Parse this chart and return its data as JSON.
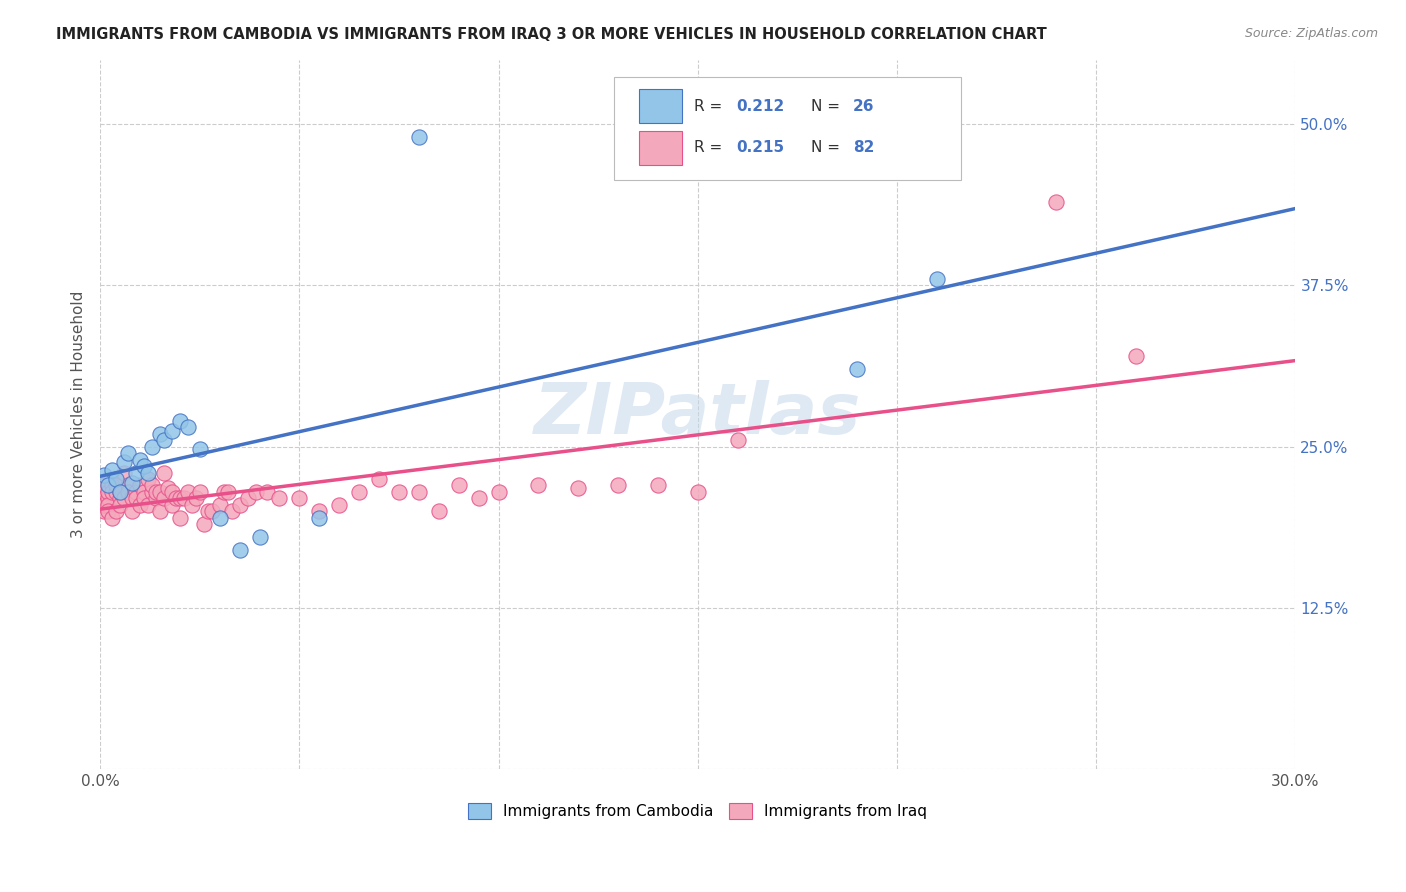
{
  "title": "IMMIGRANTS FROM CAMBODIA VS IMMIGRANTS FROM IRAQ 3 OR MORE VEHICLES IN HOUSEHOLD CORRELATION CHART",
  "source": "Source: ZipAtlas.com",
  "ylabel": "3 or more Vehicles in Household",
  "xmin": 0.0,
  "xmax": 0.3,
  "ymin": 0.0,
  "ymax": 0.55,
  "xticks": [
    0.0,
    0.05,
    0.1,
    0.15,
    0.2,
    0.25,
    0.3
  ],
  "yticks": [
    0.0,
    0.125,
    0.25,
    0.375,
    0.5
  ],
  "watermark": "ZIPatlas",
  "legend_label_cambodia": "Immigrants from Cambodia",
  "legend_label_iraq": "Immigrants from Iraq",
  "color_cambodia": "#92C5E8",
  "color_iraq": "#F4A8BC",
  "trendline_color_cambodia": "#4472C4",
  "trendline_color_iraq": "#E8508A",
  "background_color": "#FFFFFF",
  "cambodia_x": [
    0.001,
    0.002,
    0.003,
    0.004,
    0.005,
    0.006,
    0.007,
    0.008,
    0.009,
    0.01,
    0.011,
    0.012,
    0.013,
    0.015,
    0.016,
    0.018,
    0.02,
    0.022,
    0.025,
    0.03,
    0.035,
    0.04,
    0.055,
    0.08,
    0.19,
    0.21
  ],
  "cambodia_y": [
    0.228,
    0.22,
    0.232,
    0.225,
    0.215,
    0.238,
    0.245,
    0.222,
    0.23,
    0.24,
    0.235,
    0.23,
    0.25,
    0.26,
    0.255,
    0.262,
    0.27,
    0.265,
    0.248,
    0.195,
    0.17,
    0.18,
    0.195,
    0.49,
    0.31,
    0.38
  ],
  "iraq_x": [
    0.001,
    0.001,
    0.001,
    0.001,
    0.001,
    0.002,
    0.002,
    0.002,
    0.002,
    0.003,
    0.003,
    0.003,
    0.004,
    0.004,
    0.004,
    0.005,
    0.005,
    0.005,
    0.006,
    0.006,
    0.007,
    0.007,
    0.008,
    0.008,
    0.009,
    0.009,
    0.01,
    0.01,
    0.011,
    0.011,
    0.012,
    0.012,
    0.013,
    0.013,
    0.014,
    0.014,
    0.015,
    0.015,
    0.016,
    0.016,
    0.017,
    0.018,
    0.018,
    0.019,
    0.02,
    0.02,
    0.021,
    0.022,
    0.023,
    0.024,
    0.025,
    0.026,
    0.027,
    0.028,
    0.03,
    0.031,
    0.032,
    0.033,
    0.035,
    0.037,
    0.039,
    0.042,
    0.045,
    0.05,
    0.055,
    0.06,
    0.065,
    0.07,
    0.075,
    0.08,
    0.085,
    0.09,
    0.095,
    0.1,
    0.11,
    0.12,
    0.13,
    0.14,
    0.15,
    0.16,
    0.24,
    0.26
  ],
  "iraq_y": [
    0.21,
    0.215,
    0.22,
    0.2,
    0.205,
    0.21,
    0.215,
    0.205,
    0.2,
    0.22,
    0.215,
    0.195,
    0.215,
    0.22,
    0.2,
    0.21,
    0.205,
    0.215,
    0.21,
    0.23,
    0.22,
    0.215,
    0.21,
    0.2,
    0.215,
    0.21,
    0.22,
    0.205,
    0.215,
    0.21,
    0.225,
    0.205,
    0.215,
    0.22,
    0.21,
    0.215,
    0.2,
    0.215,
    0.21,
    0.23,
    0.218,
    0.205,
    0.215,
    0.21,
    0.195,
    0.21,
    0.21,
    0.215,
    0.205,
    0.21,
    0.215,
    0.19,
    0.2,
    0.2,
    0.205,
    0.215,
    0.215,
    0.2,
    0.205,
    0.21,
    0.215,
    0.215,
    0.21,
    0.21,
    0.2,
    0.205,
    0.215,
    0.225,
    0.215,
    0.215,
    0.2,
    0.22,
    0.21,
    0.215,
    0.22,
    0.218,
    0.22,
    0.22,
    0.215,
    0.255,
    0.44,
    0.32
  ]
}
